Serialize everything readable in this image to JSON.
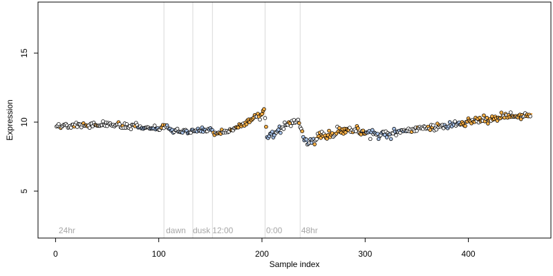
{
  "chart_data": {
    "type": "scatter",
    "xlabel": "Sample index",
    "ylabel": "Expression",
    "xlim": [
      -17,
      480
    ],
    "ylim": [
      1.6,
      18.7
    ],
    "xticks": [
      "0",
      "100",
      "200",
      "300",
      "400"
    ],
    "yticks": [
      "5",
      "10",
      "15"
    ],
    "grid": false,
    "phase_lines": [
      105,
      133,
      152,
      203,
      237
    ],
    "annotations": [
      {
        "x": 3,
        "text": "24hr"
      },
      {
        "x": 107,
        "text": "dawn"
      },
      {
        "x": 133,
        "text": "dusk"
      },
      {
        "x": 152,
        "text": "12:00"
      },
      {
        "x": 204,
        "text": "0:00"
      },
      {
        "x": 238,
        "text": "48hr"
      }
    ],
    "colors": {
      "point_edge": "#000000",
      "point_fill_light": "#ffffff",
      "point_fill_orange": "#ffb347",
      "point_fill_blue": "#a9c4eb",
      "line_orange": "#f5a030",
      "line_blue": "#7fa5dc",
      "phase_line": "#d9d9d9",
      "annotation": "#a6a6a6"
    },
    "trend": [
      [
        0,
        9.7
      ],
      [
        20,
        9.8
      ],
      [
        40,
        9.85
      ],
      [
        60,
        9.8
      ],
      [
        80,
        9.6
      ],
      [
        100,
        9.5
      ],
      [
        105,
        9.7
      ],
      [
        115,
        9.4
      ],
      [
        130,
        9.3
      ],
      [
        150,
        9.5
      ],
      [
        155,
        9.1
      ],
      [
        165,
        9.2
      ],
      [
        175,
        9.6
      ],
      [
        185,
        10.0
      ],
      [
        195,
        10.4
      ],
      [
        202,
        10.6
      ],
      [
        205,
        8.9
      ],
      [
        215,
        9.4
      ],
      [
        225,
        9.8
      ],
      [
        236,
        10.1
      ],
      [
        240,
        8.9
      ],
      [
        245,
        8.5
      ],
      [
        255,
        9.0
      ],
      [
        275,
        9.3
      ],
      [
        290,
        9.4
      ],
      [
        305,
        9.2
      ],
      [
        320,
        9.0
      ],
      [
        340,
        9.4
      ],
      [
        360,
        9.6
      ],
      [
        380,
        9.7
      ],
      [
        400,
        10.0
      ],
      [
        420,
        10.2
      ],
      [
        440,
        10.4
      ],
      [
        462,
        10.6
      ]
    ],
    "segments": [
      {
        "color": "blue",
        "x": [
          80,
          100
        ]
      },
      {
        "color": "blue",
        "x": [
          108,
          152
        ]
      },
      {
        "color": "orange",
        "x": [
          152,
          160
        ]
      },
      {
        "color": "orange",
        "x": [
          176,
          202
        ]
      },
      {
        "color": "blue",
        "x": [
          205,
          218
        ]
      },
      {
        "color": "blue",
        "x": [
          240,
          250
        ]
      },
      {
        "color": "orange",
        "x": [
          250,
          300
        ]
      },
      {
        "color": "blue",
        "x": [
          300,
          340
        ]
      },
      {
        "color": "blue",
        "x": [
          375,
          392
        ]
      },
      {
        "color": "orange",
        "x": [
          392,
          462
        ]
      }
    ],
    "n_points": 460,
    "seed": 17
  }
}
